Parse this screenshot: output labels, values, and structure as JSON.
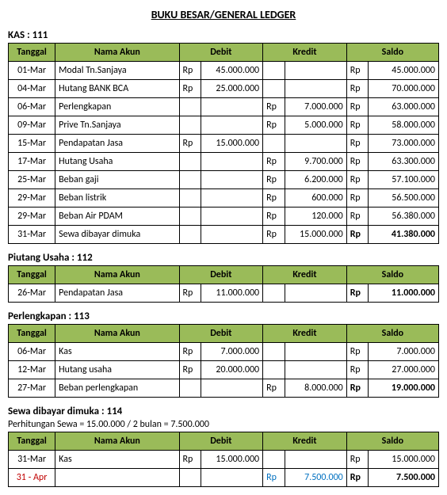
{
  "theme": {
    "header_bg": "#9ABB59",
    "border_color": "#000000",
    "font_family": "Calibri",
    "font_size_body": 12,
    "font_size_title": 14
  },
  "title": "BUKU BESAR/GENERAL LEDGER",
  "columns": [
    "Tanggal",
    "Nama Akun",
    "Debit",
    "Kredit",
    "Saldo"
  ],
  "sections": [
    {
      "label": "KAS : 111",
      "note": "",
      "rows": [
        {
          "tgl": "01-Mar",
          "nama": "Modal Tn.Sanjaya",
          "dr": "Rp",
          "dv": "45.000.000",
          "kr": "",
          "kv": "",
          "sr": "Rp",
          "sv": "45.000.000",
          "bold": false,
          "cls": ""
        },
        {
          "tgl": "04-Mar",
          "nama": "Hutang BANK BCA",
          "dr": "Rp",
          "dv": "25.000.000",
          "kr": "",
          "kv": "",
          "sr": "Rp",
          "sv": "70.000.000",
          "bold": false,
          "cls": ""
        },
        {
          "tgl": "06-Mar",
          "nama": "Perlengkapan",
          "dr": "",
          "dv": "",
          "kr": "Rp",
          "kv": "7.000.000",
          "sr": "Rp",
          "sv": "63.000.000",
          "bold": false,
          "cls": ""
        },
        {
          "tgl": "09-Mar",
          "nama": "Prive Tn.Sanjaya",
          "dr": "",
          "dv": "",
          "kr": "Rp",
          "kv": "5.000.000",
          "sr": "Rp",
          "sv": "58.000.000",
          "bold": false,
          "cls": ""
        },
        {
          "tgl": "15-Mar",
          "nama": "Pendapatan Jasa",
          "dr": "Rp",
          "dv": "15.000.000",
          "kr": "",
          "kv": "",
          "sr": "Rp",
          "sv": "73.000.000",
          "bold": false,
          "cls": ""
        },
        {
          "tgl": "17-Mar",
          "nama": "Hutang Usaha",
          "dr": "",
          "dv": "",
          "kr": "Rp",
          "kv": "9.700.000",
          "sr": "Rp",
          "sv": "63.300.000",
          "bold": false,
          "cls": ""
        },
        {
          "tgl": "25-Mar",
          "nama": "Beban gaji",
          "dr": "",
          "dv": "",
          "kr": "Rp",
          "kv": "6.200.000",
          "sr": "Rp",
          "sv": "57.100.000",
          "bold": false,
          "cls": ""
        },
        {
          "tgl": "29-Mar",
          "nama": "Beban listrik",
          "dr": "",
          "dv": "",
          "kr": "Rp",
          "kv": "600.000",
          "sr": "Rp",
          "sv": "56.500.000",
          "bold": false,
          "cls": ""
        },
        {
          "tgl": "29-Mar",
          "nama": "Beban Air PDAM",
          "dr": "",
          "dv": "",
          "kr": "Rp",
          "kv": "120.000",
          "sr": "Rp",
          "sv": "56.380.000",
          "bold": false,
          "cls": ""
        },
        {
          "tgl": "31-Mar",
          "nama": "Sewa dibayar dimuka",
          "dr": "",
          "dv": "",
          "kr": "Rp",
          "kv": "15.000.000",
          "sr": "Rp",
          "sv": "41.380.000",
          "bold": true,
          "cls": ""
        }
      ]
    },
    {
      "label": "Piutang Usaha : 112",
      "note": "",
      "rows": [
        {
          "tgl": "26-Mar",
          "nama": "Pendapatan Jasa",
          "dr": "Rp",
          "dv": "11.000.000",
          "kr": "",
          "kv": "",
          "sr": "Rp",
          "sv": "11.000.000",
          "bold": true,
          "cls": ""
        }
      ]
    },
    {
      "label": "Perlengkapan : 113",
      "note": "",
      "rows": [
        {
          "tgl": "06-Mar",
          "nama": "Kas",
          "dr": "Rp",
          "dv": "7.000.000",
          "kr": "",
          "kv": "",
          "sr": "Rp",
          "sv": "7.000.000",
          "bold": false,
          "cls": ""
        },
        {
          "tgl": "12-Mar",
          "nama": "Hutang usaha",
          "dr": "Rp",
          "dv": "20.000.000",
          "kr": "",
          "kv": "",
          "sr": "Rp",
          "sv": "27.000.000",
          "bold": false,
          "cls": ""
        },
        {
          "tgl": "27-Mar",
          "nama": "Beban perlengkapan",
          "dr": "",
          "dv": "",
          "kr": "Rp",
          "kv": "8.000.000",
          "sr": "Rp",
          "sv": "19.000.000",
          "bold": true,
          "cls": ""
        }
      ]
    },
    {
      "label": "Sewa dibayar dimuka : 114",
      "note": "Perhitungan Sewa = 15.00.000 / 2 bulan = 7.500.000",
      "rows": [
        {
          "tgl": "31-Mar",
          "nama": "Kas",
          "dr": "Rp",
          "dv": "15.000.000",
          "kr": "",
          "kv": "",
          "sr": "Rp",
          "sv": "15.000.000",
          "bold": false,
          "cls": ""
        },
        {
          "tgl": "31 - Apr",
          "nama": "",
          "dr": "",
          "dv": "",
          "kr": "Rp",
          "kv": "7.500.000",
          "sr": "Rp",
          "sv": "7.500.000",
          "bold": true,
          "cls": "special"
        }
      ]
    }
  ]
}
